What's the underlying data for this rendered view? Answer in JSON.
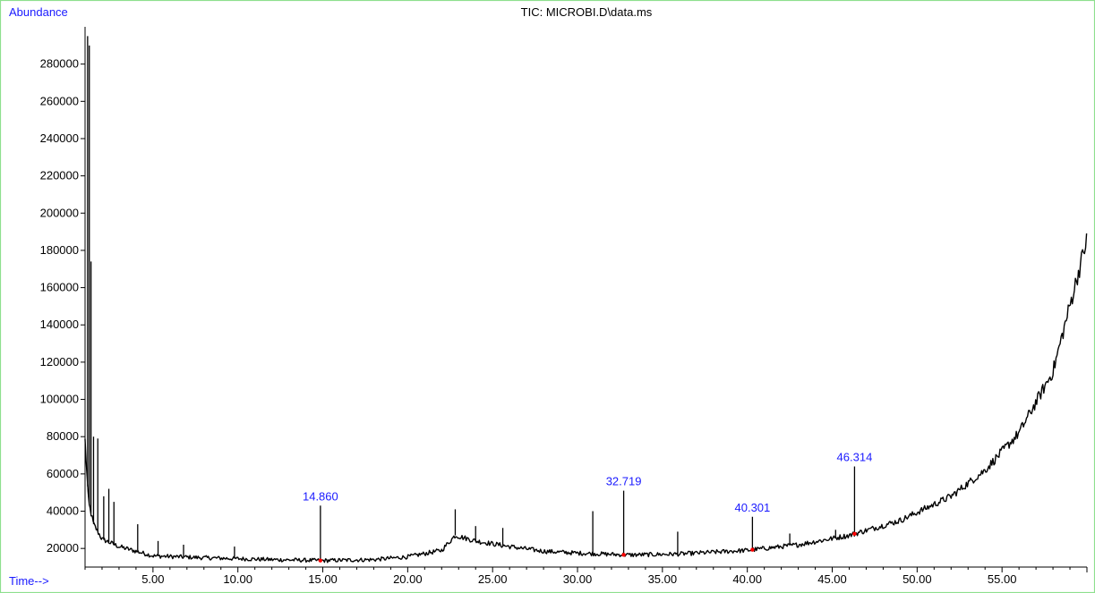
{
  "chart_data": {
    "type": "line",
    "title": "TIC: MICROBI.D\\data.ms",
    "ylabel": "Abundance",
    "xlabel": "Time-->",
    "xlim": [
      1.0,
      60.0
    ],
    "ylim": [
      10000,
      300000
    ],
    "xticks": [
      5,
      10,
      15,
      20,
      25,
      30,
      35,
      40,
      45,
      50,
      55
    ],
    "xtick_labels": [
      "5.00",
      "10.00",
      "15.00",
      "20.00",
      "25.00",
      "30.00",
      "35.00",
      "40.00",
      "45.00",
      "50.00",
      "55.00"
    ],
    "yticks": [
      20000,
      40000,
      60000,
      80000,
      100000,
      120000,
      140000,
      160000,
      180000,
      200000,
      220000,
      240000,
      260000,
      280000
    ],
    "ytick_labels": [
      "20000",
      "40000",
      "60000",
      "80000",
      "100000",
      "120000",
      "140000",
      "160000",
      "180000",
      "200000",
      "220000",
      "240000",
      "260000",
      "280000"
    ],
    "baseline": [
      [
        1.0,
        78000
      ],
      [
        1.2,
        45000
      ],
      [
        1.5,
        33000
      ],
      [
        2.0,
        25000
      ],
      [
        3.0,
        21000
      ],
      [
        5.0,
        16000
      ],
      [
        8.0,
        15000
      ],
      [
        12.0,
        14000
      ],
      [
        15.0,
        13500
      ],
      [
        18.0,
        14000
      ],
      [
        20.0,
        15500
      ],
      [
        22.0,
        19000
      ],
      [
        22.8,
        27000
      ],
      [
        24.0,
        24000
      ],
      [
        26.0,
        21000
      ],
      [
        28.0,
        18500
      ],
      [
        30.0,
        17500
      ],
      [
        33.0,
        16500
      ],
      [
        36.0,
        17000
      ],
      [
        40.0,
        19000
      ],
      [
        43.0,
        22000
      ],
      [
        46.0,
        27000
      ],
      [
        49.0,
        35000
      ],
      [
        52.0,
        48000
      ],
      [
        54.0,
        62000
      ],
      [
        56.0,
        82000
      ],
      [
        58.0,
        115000
      ],
      [
        60.0,
        186000
      ]
    ],
    "spikes": [
      [
        1.15,
        295000
      ],
      [
        1.25,
        290000
      ],
      [
        1.35,
        174000
      ],
      [
        1.5,
        80000
      ],
      [
        1.75,
        79000
      ],
      [
        2.1,
        48000
      ],
      [
        2.4,
        52000
      ],
      [
        2.7,
        45000
      ],
      [
        4.1,
        33000
      ],
      [
        5.3,
        24000
      ],
      [
        6.8,
        22000
      ],
      [
        9.8,
        21000
      ],
      [
        14.86,
        43000
      ],
      [
        22.8,
        41000
      ],
      [
        24.0,
        32000
      ],
      [
        25.6,
        31000
      ],
      [
        30.9,
        40000
      ],
      [
        32.719,
        51000
      ],
      [
        35.9,
        29000
      ],
      [
        40.301,
        37000
      ],
      [
        42.5,
        28000
      ],
      [
        45.2,
        30000
      ],
      [
        46.314,
        64000
      ]
    ],
    "peak_labels": [
      {
        "time": 14.86,
        "abundance": 43000,
        "text": "14.860"
      },
      {
        "time": 32.719,
        "abundance": 51000,
        "text": "32.719"
      },
      {
        "time": 40.301,
        "abundance": 37000,
        "text": "40.301"
      },
      {
        "time": 46.314,
        "abundance": 64000,
        "text": "46.314"
      }
    ],
    "integration_markers": [
      14.86,
      32.719,
      40.301,
      46.314
    ],
    "colors": {
      "frame": "#8ee08e",
      "trace": "#000000",
      "label": "#1a1aff",
      "marker": "#ff0000"
    },
    "legend": "none",
    "grid": false
  }
}
